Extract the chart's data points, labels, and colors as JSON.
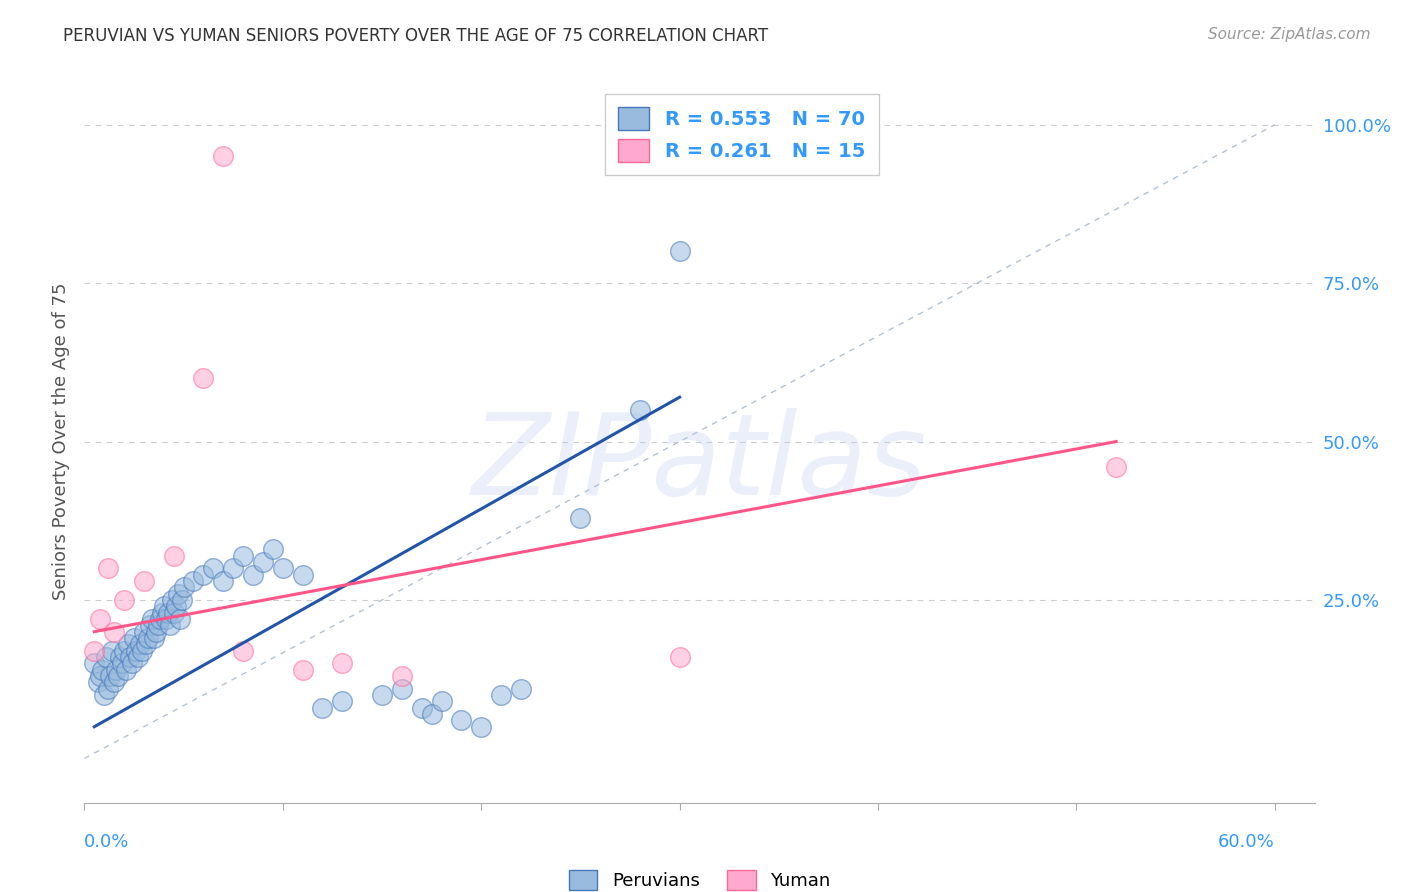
{
  "title": "PERUVIAN VS YUMAN SENIORS POVERTY OVER THE AGE OF 75 CORRELATION CHART",
  "source": "Source: ZipAtlas.com",
  "ylabel": "Seniors Poverty Over the Age of 75",
  "xlim": [
    0.0,
    0.62
  ],
  "ylim": [
    -0.07,
    1.07
  ],
  "blue_color": "#99BBDD",
  "pink_color": "#FFAACC",
  "blue_edge_color": "#4477BB",
  "pink_edge_color": "#FF6699",
  "blue_line_color": "#2255AA",
  "pink_line_color": "#FF5588",
  "title_color": "#333333",
  "source_color": "#999999",
  "tick_color": "#3399FF",
  "grid_color": "#CCCCCC",
  "watermark_color": "#BBCCEE",
  "diagonal_color": "#AABBCC",
  "legend_text_color": "#333333",
  "legend_blue_text": "R = 0.553   N = 70",
  "legend_pink_text": "R = 0.261   N = 15",
  "yticks": [
    0.25,
    0.5,
    0.75,
    1.0
  ],
  "ytick_labels": [
    "25.0%",
    "50.0%",
    "75.0%",
    "100.0%"
  ],
  "xtick_left_label": "0.0%",
  "xtick_right_label": "60.0%",
  "blue_x": [
    0.005,
    0.007,
    0.008,
    0.009,
    0.01,
    0.011,
    0.012,
    0.013,
    0.014,
    0.015,
    0.016,
    0.017,
    0.018,
    0.019,
    0.02,
    0.021,
    0.022,
    0.023,
    0.024,
    0.025,
    0.026,
    0.027,
    0.028,
    0.029,
    0.03,
    0.031,
    0.032,
    0.033,
    0.034,
    0.035,
    0.036,
    0.037,
    0.038,
    0.039,
    0.04,
    0.041,
    0.042,
    0.043,
    0.044,
    0.045,
    0.046,
    0.047,
    0.048,
    0.049,
    0.05,
    0.055,
    0.06,
    0.065,
    0.07,
    0.075,
    0.08,
    0.085,
    0.09,
    0.095,
    0.1,
    0.11,
    0.12,
    0.13,
    0.15,
    0.16,
    0.17,
    0.175,
    0.18,
    0.19,
    0.2,
    0.21,
    0.22,
    0.25,
    0.28,
    0.3
  ],
  "blue_y": [
    0.15,
    0.12,
    0.13,
    0.14,
    0.1,
    0.16,
    0.11,
    0.13,
    0.17,
    0.12,
    0.14,
    0.13,
    0.16,
    0.15,
    0.17,
    0.14,
    0.18,
    0.16,
    0.15,
    0.19,
    0.17,
    0.16,
    0.18,
    0.17,
    0.2,
    0.18,
    0.19,
    0.21,
    0.22,
    0.19,
    0.2,
    0.21,
    0.22,
    0.23,
    0.24,
    0.22,
    0.23,
    0.21,
    0.25,
    0.23,
    0.24,
    0.26,
    0.22,
    0.25,
    0.27,
    0.28,
    0.29,
    0.3,
    0.28,
    0.3,
    0.32,
    0.29,
    0.31,
    0.33,
    0.3,
    0.29,
    0.08,
    0.09,
    0.1,
    0.11,
    0.08,
    0.07,
    0.09,
    0.06,
    0.05,
    0.1,
    0.11,
    0.38,
    0.55,
    0.8
  ],
  "pink_x": [
    0.005,
    0.008,
    0.012,
    0.015,
    0.02,
    0.03,
    0.045,
    0.06,
    0.07,
    0.08,
    0.11,
    0.13,
    0.16,
    0.3,
    0.52
  ],
  "pink_y": [
    0.17,
    0.22,
    0.3,
    0.2,
    0.25,
    0.28,
    0.32,
    0.6,
    0.95,
    0.17,
    0.14,
    0.15,
    0.13,
    0.16,
    0.46
  ],
  "blue_fit_x": [
    0.005,
    0.3
  ],
  "blue_fit_y": [
    0.05,
    0.57
  ],
  "pink_fit_x": [
    0.005,
    0.52
  ],
  "pink_fit_y": [
    0.2,
    0.5
  ]
}
